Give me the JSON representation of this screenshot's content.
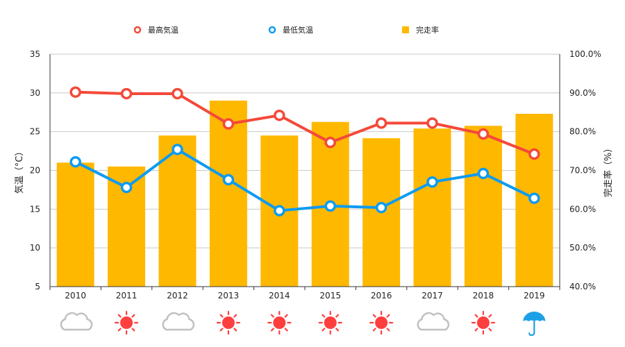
{
  "chart_data": {
    "type": "bar",
    "categories": [
      "2010",
      "2011",
      "2012",
      "2013",
      "2014",
      "2015",
      "2016",
      "2017",
      "2018",
      "2019"
    ],
    "y_left": {
      "label": "気温（°C）",
      "ylim": [
        5,
        35
      ],
      "ticks": [
        "5",
        "10",
        "15",
        "20",
        "25",
        "30",
        "35"
      ]
    },
    "y_right": {
      "label": "完走率（%）",
      "ylim": [
        40,
        100
      ],
      "ticks": [
        "40.0%",
        "50.0%",
        "60.0%",
        "70.0%",
        "80.0%",
        "90.0%",
        "100.0%"
      ]
    },
    "series": [
      {
        "name": "完走率",
        "type": "bar",
        "axis": "right",
        "color": "#FFB800",
        "values": [
          72.0,
          71.0,
          79.0,
          88.0,
          79.0,
          82.5,
          78.3,
          80.8,
          81.5,
          84.6
        ]
      },
      {
        "name": "最高気温",
        "type": "line",
        "axis": "left",
        "color": "#F4493A",
        "values": [
          30.1,
          29.9,
          29.9,
          26.0,
          27.1,
          23.6,
          26.1,
          26.1,
          24.7,
          22.1
        ]
      },
      {
        "name": "最低気温",
        "type": "line",
        "axis": "left",
        "color": "#0E9BEF",
        "values": [
          21.1,
          17.8,
          22.7,
          18.8,
          14.8,
          15.4,
          15.2,
          18.5,
          19.6,
          16.4
        ]
      }
    ],
    "weather": [
      "cloudy",
      "sunny",
      "cloudy",
      "sunny",
      "sunny",
      "sunny",
      "sunny",
      "cloudy",
      "sunny",
      "rainy"
    ],
    "legend_position": "top",
    "grid": true
  }
}
